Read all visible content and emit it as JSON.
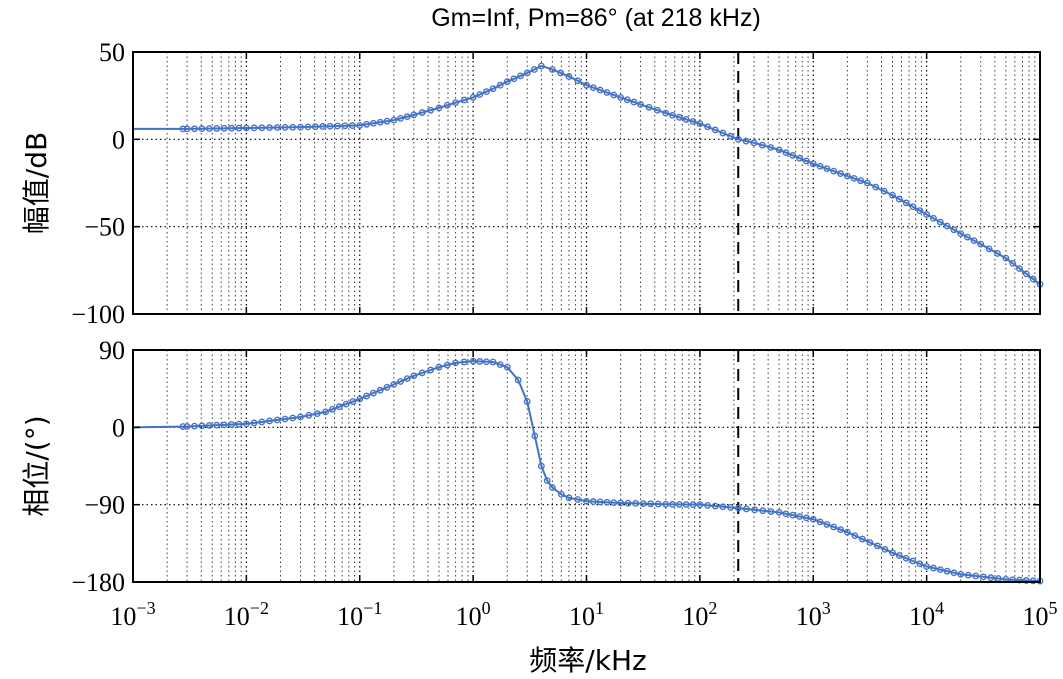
{
  "chart_data": {
    "type": "line",
    "title": "Gm=Inf, Pm=86°  (at 218 kHz)",
    "xlabel": "频率/kHz",
    "x_scale": "log",
    "xlim": [
      0.001,
      100000
    ],
    "x_tick_exponents": [
      "−3",
      "−2",
      "−1",
      "0",
      "1",
      "2",
      "3",
      "4",
      "5"
    ],
    "x_tick_base": "10",
    "crossover_frequency_khz": 218,
    "grid": true,
    "line_color": "#4472c4",
    "marker": "open-circle",
    "panels": [
      {
        "name": "magnitude",
        "ylabel": "幅值/dB",
        "ylim": [
          -100,
          50
        ],
        "y_ticks": [
          50,
          0,
          -50,
          -100
        ],
        "y_tick_labels": [
          "50",
          "0",
          "−50",
          "−100"
        ],
        "series": [
          {
            "x": [
              0.001,
              0.003,
              0.01,
              0.03,
              0.1,
              0.2,
              0.3,
              0.5,
              0.7,
              1,
              1.5,
              2,
              3,
              4,
              5,
              7,
              10,
              20,
              30,
              50,
              100,
              218,
              300,
              500,
              1000,
              2000,
              3000,
              5000,
              10000,
              20000,
              30000,
              50000,
              100000
            ],
            "values": [
              6,
              6,
              6.5,
              7,
              8,
              11,
              14,
              18,
              21,
              24,
              29,
              33,
              38,
              42,
              40,
              36,
              31,
              24,
              20,
              15,
              9,
              0,
              -2,
              -6,
              -14,
              -21,
              -25,
              -32,
              -43,
              -54,
              -60,
              -68,
              -83
            ]
          }
        ]
      },
      {
        "name": "phase",
        "ylabel": "相位/(°)",
        "ylim": [
          -180,
          90
        ],
        "y_ticks": [
          90,
          0,
          -90,
          -180
        ],
        "y_tick_labels": [
          "90",
          "0",
          "−90",
          "−180"
        ],
        "series": [
          {
            "x": [
              0.001,
              0.003,
              0.01,
              0.03,
              0.05,
              0.1,
              0.2,
              0.3,
              0.5,
              0.7,
              1,
              1.5,
              2,
              2.5,
              3,
              3.5,
              4,
              4.5,
              5,
              6,
              7,
              10,
              20,
              50,
              100,
              218,
              500,
              1000,
              2000,
              5000,
              10000,
              20000,
              50000,
              100000
            ],
            "values": [
              0,
              1,
              4,
              12,
              18,
              33,
              50,
              60,
              70,
              75,
              77,
              76,
              70,
              55,
              30,
              -10,
              -45,
              -62,
              -70,
              -78,
              -82,
              -86,
              -88,
              -89.5,
              -90,
              -94,
              -99,
              -107,
              -122,
              -146,
              -162,
              -171,
              -177,
              -179
            ]
          }
        ]
      }
    ]
  }
}
